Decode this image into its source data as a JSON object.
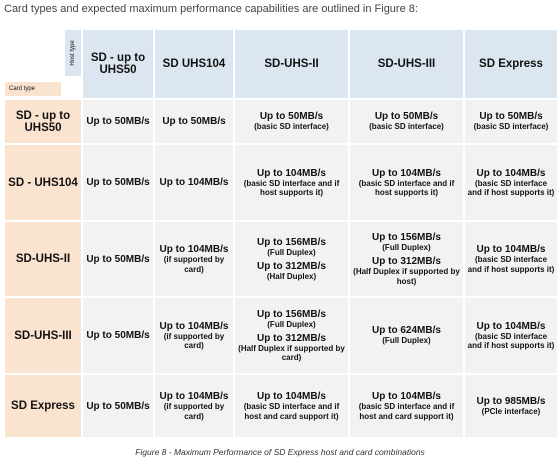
{
  "intro": "Card types and expected maximum performance capabilities are outlined in Figure 8:",
  "table": {
    "host_label": "Host type",
    "card_label": "Card type",
    "columns": [
      "SD - up to UHS50",
      "SD UHS104",
      "SD-UHS-II",
      "SD-UHS-III",
      "SD Express"
    ],
    "rows": [
      {
        "card": "SD - up to UHS50",
        "cells": [
          [
            {
              "speed": "Up to 50MB/s"
            }
          ],
          [
            {
              "speed": "Up to 50MB/s"
            }
          ],
          [
            {
              "speed": "Up to 50MB/s",
              "note": "(basic SD interface)"
            }
          ],
          [
            {
              "speed": "Up to 50MB/s",
              "note": "(basic SD interface)"
            }
          ],
          [
            {
              "speed": "Up to 50MB/s",
              "note": "(basic SD interface)"
            }
          ]
        ]
      },
      {
        "card": "SD - UHS104",
        "cells": [
          [
            {
              "speed": "Up to 50MB/s"
            }
          ],
          [
            {
              "speed": "Up to 104MB/s"
            }
          ],
          [
            {
              "speed": "Up to 104MB/s",
              "note": "(basic SD interface and if host supports it)"
            }
          ],
          [
            {
              "speed": "Up to 104MB/s",
              "note": "(basic SD interface and if host supports it)"
            }
          ],
          [
            {
              "speed": "Up to 104MB/s",
              "note": "(basic SD interface and if host supports it)"
            }
          ]
        ]
      },
      {
        "card": "SD-UHS-II",
        "cells": [
          [
            {
              "speed": "Up to 50MB/s"
            }
          ],
          [
            {
              "speed": "Up to 104MB/s",
              "note": "(if supported by card)"
            }
          ],
          [
            {
              "speed": "Up to 156MB/s",
              "note": "(Full Duplex)"
            },
            {
              "speed": "Up to 312MB/s",
              "note": "(Half Duplex)"
            }
          ],
          [
            {
              "speed": "Up to 156MB/s",
              "note": "(Full Duplex)"
            },
            {
              "speed": "Up to 312MB/s",
              "note": "(Half Duplex if supported by host)"
            }
          ],
          [
            {
              "speed": "Up to 104MB/s",
              "note": "(basic SD interface and if host supports it)"
            }
          ]
        ]
      },
      {
        "card": "SD-UHS-III",
        "cells": [
          [
            {
              "speed": "Up to 50MB/s"
            }
          ],
          [
            {
              "speed": "Up to 104MB/s",
              "note": "(if supported by card)"
            }
          ],
          [
            {
              "speed": "Up to 156MB/s",
              "note": "(Full Duplex)"
            },
            {
              "speed": "Up to 312MB/s",
              "note": "(Half Duplex if supported by card)"
            }
          ],
          [
            {
              "speed": "Up to 624MB/s",
              "note": "(Full Duplex)"
            }
          ],
          [
            {
              "speed": "Up to 104MB/s",
              "note": "(basic SD interface and if host supports it)"
            }
          ]
        ]
      },
      {
        "card": "SD Express",
        "cells": [
          [
            {
              "speed": "Up to 50MB/s"
            }
          ],
          [
            {
              "speed": "Up to 104MB/s",
              "note": "(if supported by card)"
            }
          ],
          [
            {
              "speed": "Up to 104MB/s",
              "note": "(basic SD interface and if host and card support it)"
            }
          ],
          [
            {
              "speed": "Up to 104MB/s",
              "note": "(basic SD interface and if host and card support it)"
            }
          ],
          [
            {
              "speed": "Up to 985MB/s",
              "note": "(PCIe interface)"
            }
          ]
        ]
      }
    ]
  },
  "caption": "Figure 8 - Maximum Performance of SD Express host and card combinations"
}
